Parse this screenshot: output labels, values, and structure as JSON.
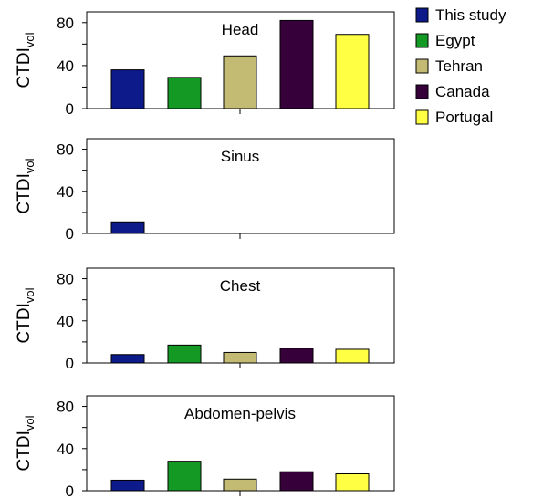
{
  "chart_data": {
    "type": "bar",
    "ylabel": "CTDI",
    "ylabel_subscript": "vol",
    "categories": [
      "This study",
      "Egypt",
      "Tehran",
      "Canada",
      "Portugal"
    ],
    "legend": {
      "placement": "top-right",
      "items": [
        {
          "label": "This study",
          "color": "#0c1a8a"
        },
        {
          "label": "Egypt",
          "color": "#149a24"
        },
        {
          "label": "Tehran",
          "color": "#c3bb73"
        },
        {
          "label": "Canada",
          "color": "#36003a"
        },
        {
          "label": "Portugal",
          "color": "#ffff44"
        }
      ]
    },
    "panels": [
      {
        "title": "Head",
        "ylim": [
          0,
          90
        ],
        "yticks": [
          0,
          40,
          80
        ],
        "values": [
          36,
          29,
          49,
          82,
          69
        ]
      },
      {
        "title": "Sinus",
        "ylim": [
          0,
          90
        ],
        "yticks": [
          0,
          40,
          80
        ],
        "values": [
          11,
          null,
          null,
          null,
          null
        ]
      },
      {
        "title": "Chest",
        "ylim": [
          0,
          90
        ],
        "yticks": [
          0,
          40,
          80
        ],
        "values": [
          8,
          17,
          10,
          14,
          13
        ]
      },
      {
        "title": "Abdomen-pelvis",
        "ylim": [
          0,
          90
        ],
        "yticks": [
          0,
          40,
          80
        ],
        "values": [
          10,
          28,
          11,
          18,
          16
        ]
      }
    ]
  }
}
